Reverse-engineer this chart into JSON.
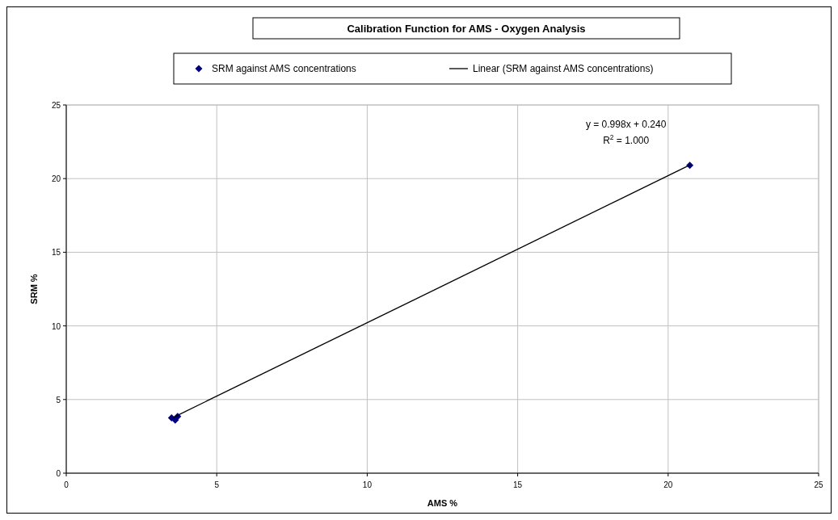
{
  "chart_data": {
    "type": "scatter",
    "title": "Calibration Function for AMS - Oxygen Analysis",
    "xlabel": "AMS  %",
    "ylabel": "SRM  %",
    "xlim": [
      0,
      25
    ],
    "xticks": [
      0,
      5,
      10,
      15,
      20,
      25
    ],
    "ylim": [
      0,
      25
    ],
    "yticks": [
      0,
      5,
      10,
      15,
      20,
      25
    ],
    "grid": true,
    "legend": "top",
    "marker": "diamond",
    "annotations": [
      "y = 0.998x + 0.240",
      "R$^{2}$ = 1.000"
    ],
    "series": [
      {
        "name": "SRM against AMS concentrations",
        "color": "#000080",
        "x": [
          3.5,
          3.62,
          3.7,
          20.72
        ],
        "values": [
          3.75,
          3.6,
          3.85,
          20.9
        ]
      },
      {
        "name": "Linear (SRM against AMS concentrations)",
        "type": "line",
        "color": "#000000",
        "marker": "none",
        "line_style": "solid",
        "x": [
          3.55,
          20.72
        ],
        "values": [
          3.78,
          20.92
        ]
      }
    ]
  }
}
